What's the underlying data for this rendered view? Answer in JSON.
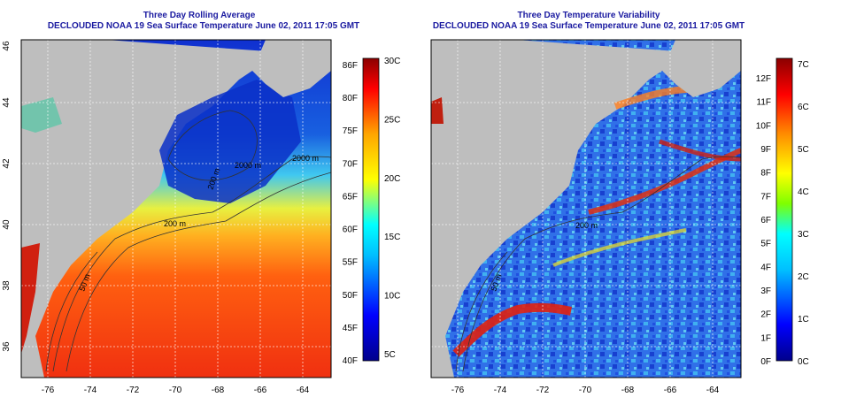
{
  "left": {
    "title_line1": "Three Day Rolling Average",
    "title_line2": "DECLOUDED NOAA 19 Sea Surface Temperature June 02, 2011 17:05 GMT",
    "lat_ticks": [
      "46",
      "44",
      "42",
      "40",
      "38",
      "36"
    ],
    "lon_ticks": [
      "-76",
      "-74",
      "-72",
      "-70",
      "-68",
      "-66",
      "-64"
    ],
    "contour_labels": [
      "2000 m",
      "200 m",
      "50 m",
      "200 m",
      "2000 m"
    ],
    "colorbar_f": [
      "86F",
      "80F",
      "75F",
      "70F",
      "65F",
      "60F",
      "55F",
      "50F",
      "45F",
      "40F"
    ],
    "colorbar_c": [
      "30C",
      "25C",
      "20C",
      "15C",
      "10C",
      "5C"
    ]
  },
  "right": {
    "title_line1": "Three Day Temperature Variability",
    "title_line2": "DECLOUDED NOAA 19 Sea Surface Temperature June 02, 2011 17:05 GMT",
    "lat_ticks": [
      "46",
      "44",
      "42",
      "40",
      "38",
      "36"
    ],
    "lon_ticks": [
      "-76",
      "-74",
      "-72",
      "-70",
      "-68",
      "-66",
      "-64"
    ],
    "contour_labels": [
      "200 m",
      "50 m"
    ],
    "colorbar_f": [
      "12F",
      "11F",
      "10F",
      "9F",
      "8F",
      "7F",
      "6F",
      "5F",
      "4F",
      "3F",
      "2F",
      "1F",
      "0F"
    ],
    "colorbar_c": [
      "7C",
      "6C",
      "5C",
      "4C",
      "3C",
      "2C",
      "1C",
      "0C"
    ]
  },
  "colors": {
    "title": "#1a1aa0",
    "land": "#bebebe",
    "sst_scale": [
      "#00008b",
      "#0000ff",
      "#00bfff",
      "#00ffff",
      "#ffff00",
      "#ffa500",
      "#ff0000",
      "#8b0000"
    ],
    "var_scale": [
      "#00008b",
      "#0000ff",
      "#00bfff",
      "#00ffff",
      "#7fff00",
      "#ffff00",
      "#ff8c00",
      "#ff0000",
      "#8b0000"
    ]
  }
}
